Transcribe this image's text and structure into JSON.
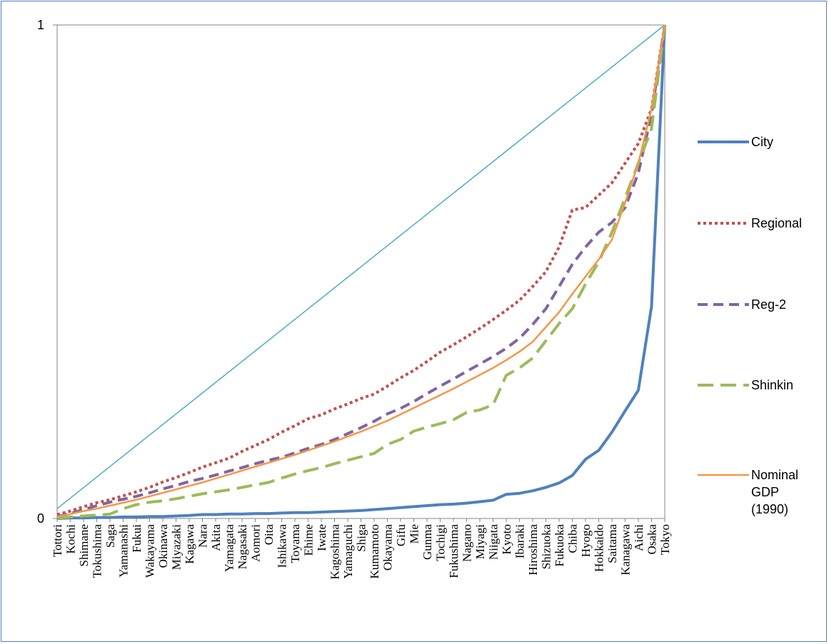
{
  "chart_data": {
    "type": "line",
    "title": "",
    "xlabel": "",
    "ylabel": "",
    "ylim": [
      0,
      1
    ],
    "yticks": [
      "0",
      "1"
    ],
    "legend_position": "right",
    "categories": [
      "Tottori",
      "Kochi",
      "Shimane",
      "Tokushima",
      "Saga",
      "Yamanashi",
      "Fukui",
      "Wakayama",
      "Okinawa",
      "Miyazaki",
      "Kagawa",
      "Nara",
      "Akita",
      "Yamagata",
      "Nagasaki",
      "Aomori",
      "Oita",
      "Ishikawa",
      "Toyama",
      "Ehime",
      "Iwate",
      "Kagoshima",
      "Yamaguchi",
      "Shiga",
      "Kumamoto",
      "Okayama",
      "Gifu",
      "Mie",
      "Gunma",
      "Tochigi",
      "Fukushima",
      "Nagano",
      "Miyagi",
      "Niigata",
      "Kyoto",
      "Ibaraki",
      "Hiroshima",
      "Shizuoka",
      "Fukuoka",
      "Chiba",
      "Hyogo",
      "Hokkaido",
      "Saitama",
      "Kanagawa",
      "Aichi",
      "Osaka",
      "Tokyo"
    ],
    "equality_line": {
      "from": [
        0,
        0.02
      ],
      "to": [
        1,
        1
      ],
      "color": "#4bacc6"
    },
    "series": [
      {
        "name": "City",
        "color": "#4f81bd",
        "dash": "solid",
        "width": 4,
        "values": [
          0,
          0.001,
          0.001,
          0.002,
          0.002,
          0.003,
          0.003,
          0.004,
          0.004,
          0.005,
          0.006,
          0.008,
          0.008,
          0.009,
          0.009,
          0.01,
          0.01,
          0.011,
          0.012,
          0.012,
          0.013,
          0.014,
          0.015,
          0.016,
          0.018,
          0.02,
          0.022,
          0.024,
          0.026,
          0.028,
          0.029,
          0.031,
          0.034,
          0.037,
          0.049,
          0.051,
          0.056,
          0.063,
          0.072,
          0.087,
          0.12,
          0.138,
          0.175,
          0.218,
          0.26,
          0.43,
          1.0
        ]
      },
      {
        "name": "Regional",
        "color": "#c0504d",
        "dash": "4,4",
        "width": 4,
        "values": [
          0.008,
          0.015,
          0.024,
          0.032,
          0.038,
          0.046,
          0.054,
          0.063,
          0.074,
          0.083,
          0.093,
          0.104,
          0.113,
          0.122,
          0.136,
          0.148,
          0.16,
          0.175,
          0.188,
          0.202,
          0.21,
          0.222,
          0.232,
          0.243,
          0.252,
          0.268,
          0.285,
          0.3,
          0.318,
          0.337,
          0.352,
          0.368,
          0.385,
          0.403,
          0.422,
          0.442,
          0.47,
          0.5,
          0.55,
          0.625,
          0.63,
          0.655,
          0.68,
          0.72,
          0.76,
          0.83,
          1.0
        ]
      },
      {
        "name": "Reg-2",
        "color": "#8064a2",
        "dash": "14,8",
        "width": 4,
        "values": [
          0.004,
          0.01,
          0.018,
          0.026,
          0.033,
          0.039,
          0.045,
          0.052,
          0.06,
          0.067,
          0.075,
          0.081,
          0.088,
          0.096,
          0.103,
          0.111,
          0.118,
          0.124,
          0.133,
          0.142,
          0.15,
          0.16,
          0.172,
          0.184,
          0.197,
          0.212,
          0.223,
          0.237,
          0.253,
          0.268,
          0.283,
          0.298,
          0.313,
          0.328,
          0.345,
          0.365,
          0.393,
          0.425,
          0.47,
          0.515,
          0.55,
          0.58,
          0.6,
          0.63,
          0.7,
          0.82,
          1.0
        ]
      },
      {
        "name": "Shinkin",
        "color": "#9bbb59",
        "dash": "22,10",
        "width": 4,
        "values": [
          0.001,
          0.003,
          0.005,
          0.007,
          0.009,
          0.02,
          0.028,
          0.033,
          0.036,
          0.04,
          0.045,
          0.05,
          0.054,
          0.058,
          0.063,
          0.068,
          0.073,
          0.082,
          0.09,
          0.097,
          0.103,
          0.111,
          0.118,
          0.125,
          0.132,
          0.15,
          0.16,
          0.177,
          0.185,
          0.192,
          0.2,
          0.215,
          0.22,
          0.23,
          0.29,
          0.305,
          0.325,
          0.36,
          0.395,
          0.425,
          0.475,
          0.52,
          0.58,
          0.65,
          0.72,
          0.79,
          1.0
        ]
      },
      {
        "name": "Nominal GDP (1990)",
        "color": "#f79646",
        "dash": "solid",
        "width": 2.5,
        "values": [
          0.004,
          0.009,
          0.015,
          0.02,
          0.026,
          0.032,
          0.038,
          0.045,
          0.052,
          0.059,
          0.066,
          0.073,
          0.081,
          0.089,
          0.097,
          0.105,
          0.113,
          0.121,
          0.129,
          0.138,
          0.147,
          0.156,
          0.166,
          0.176,
          0.187,
          0.198,
          0.211,
          0.224,
          0.237,
          0.25,
          0.263,
          0.277,
          0.291,
          0.305,
          0.321,
          0.338,
          0.358,
          0.388,
          0.418,
          0.455,
          0.49,
          0.525,
          0.565,
          0.64,
          0.72,
          0.83,
          1.0
        ]
      }
    ]
  }
}
